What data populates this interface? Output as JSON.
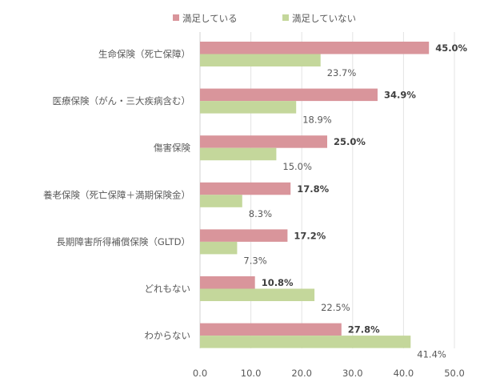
{
  "chart_data": {
    "type": "bar",
    "orientation": "horizontal",
    "title": "",
    "xlabel": "",
    "ylabel": "",
    "xlim": [
      0,
      50
    ],
    "xticks": [
      "0.0",
      "10.0",
      "20.0",
      "30.0",
      "40.0",
      "50.0"
    ],
    "grid": "vertical",
    "legend_position": "top",
    "categories": [
      "生命保険（死亡保障）",
      "医療保険（がん・三大疾病含む）",
      "傷害保険",
      "養老保険（死亡保障＋満期保険金）",
      "長期障害所得補償保険（GLTD）",
      "どれもない",
      "わからない"
    ],
    "series": [
      {
        "name": "満足している",
        "color": "#d9959b",
        "values": [
          45.0,
          34.9,
          25.0,
          17.8,
          17.2,
          10.8,
          27.8
        ],
        "labels": [
          "45.0%",
          "34.9%",
          "25.0%",
          "17.8%",
          "17.2%",
          "10.8%",
          "27.8%"
        ]
      },
      {
        "name": "満足していない",
        "color": "#c4d79b",
        "values": [
          23.7,
          18.9,
          15.0,
          8.3,
          7.3,
          22.5,
          41.4
        ],
        "labels": [
          "23.7%",
          "18.9%",
          "15.0%",
          "8.3%",
          "7.3%",
          "22.5%",
          "41.4%"
        ]
      }
    ]
  }
}
